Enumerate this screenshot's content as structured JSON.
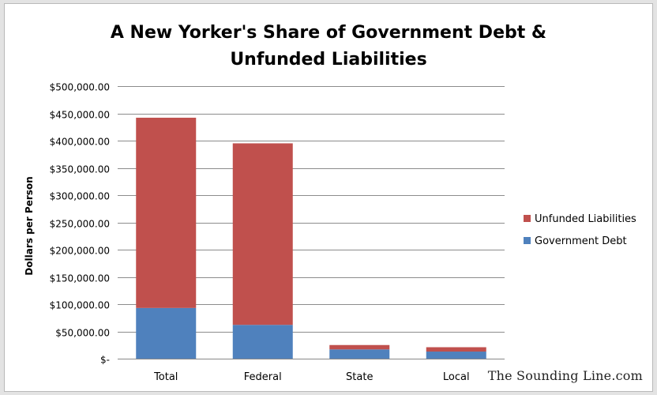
{
  "chart_data": {
    "type": "bar",
    "stacked": true,
    "title_line1": "A New Yorker's Share of Government Debt &",
    "title_line2": "Unfunded Liabilities",
    "xlabel": "",
    "ylabel": "Dollars per Person",
    "categories": [
      "Total",
      "Federal",
      "State",
      "Local"
    ],
    "series": [
      {
        "name": "Government Debt",
        "color": "#4f81bd",
        "values": [
          93000,
          62000,
          17000,
          13000
        ]
      },
      {
        "name": "Unfunded Liabilities",
        "color": "#c0504d",
        "values": [
          349000,
          333000,
          8000,
          8000
        ]
      }
    ],
    "ylim": [
      0,
      500000
    ],
    "ytick_step": 50000,
    "y_tick_labels": [
      "$-",
      "$50,000.00",
      "$100,000.00",
      "$150,000.00",
      "$200,000.00",
      "$250,000.00",
      "$300,000.00",
      "$350,000.00",
      "$400,000.00",
      "$450,000.00",
      "$500,000.00"
    ],
    "grid": true,
    "legend_position": "right",
    "legend_order": [
      "Unfunded Liabilities",
      "Government Debt"
    ]
  },
  "watermark": "The Sounding Line.com"
}
